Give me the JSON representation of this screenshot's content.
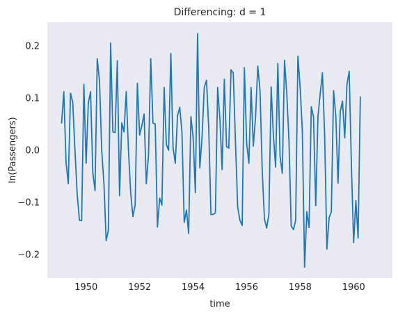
{
  "chart_data": {
    "type": "line",
    "title": "Differencing: d = 1",
    "xlabel": "time",
    "ylabel": "ln(Passengers)",
    "xlim": [
      1948.55,
      1961.45
    ],
    "ylim": [
      -0.245,
      0.245
    ],
    "xticks": [
      1950,
      1952,
      1954,
      1956,
      1958,
      1960
    ],
    "xtick_labels": [
      "1950",
      "1952",
      "1954",
      "1956",
      "1958",
      "1960"
    ],
    "yticks": [
      -0.2,
      -0.1,
      0.0,
      0.1,
      0.2
    ],
    "ytick_labels": [
      "−0.2",
      "−0.1",
      "0.0",
      "0.1",
      "0.2"
    ],
    "grid": false,
    "background_color": "#eaeaf2",
    "series": [
      {
        "color": "#1f77b4",
        "x_start": 1949.0833,
        "x_step": 0.083333,
        "values": [
          0.052,
          0.112,
          -0.023,
          -0.064,
          0.109,
          0.092,
          0.0,
          -0.084,
          -0.134,
          -0.135,
          0.126,
          -0.025,
          0.091,
          0.112,
          -0.043,
          -0.077,
          0.175,
          0.133,
          0.0,
          -0.064,
          -0.173,
          -0.153,
          0.205,
          0.035,
          0.034,
          0.171,
          -0.087,
          0.052,
          0.035,
          0.112,
          0.0,
          -0.082,
          -0.127,
          -0.105,
          0.128,
          0.029,
          0.047,
          0.069,
          -0.064,
          -0.008,
          0.175,
          0.052,
          0.05,
          -0.147,
          -0.092,
          -0.105,
          0.12,
          0.011,
          0.0,
          0.185,
          0.005,
          -0.025,
          0.066,
          0.082,
          0.034,
          -0.138,
          -0.115,
          -0.159,
          0.064,
          0.026,
          -0.081,
          0.223,
          -0.034,
          0.024,
          0.12,
          0.134,
          0.042,
          -0.123,
          -0.123,
          -0.12,
          0.12,
          0.06,
          -0.037,
          0.136,
          0.007,
          0.004,
          0.154,
          0.148,
          0.015,
          -0.11,
          -0.134,
          -0.144,
          0.158,
          0.014,
          -0.025,
          0.12,
          0.008,
          0.063,
          0.161,
          0.115,
          -0.04,
          -0.132,
          -0.149,
          -0.122,
          0.121,
          0.028,
          -0.032,
          0.166,
          -0.012,
          -0.044,
          0.172,
          0.11,
          0.018,
          -0.145,
          -0.152,
          -0.134,
          0.18,
          0.121,
          0.036,
          -0.224,
          -0.118,
          -0.148,
          0.083,
          0.064,
          -0.106,
          0.065,
          0.108,
          0.148,
          0.028,
          -0.189,
          -0.129,
          -0.118,
          0.114,
          0.066,
          -0.063,
          0.074,
          0.094,
          0.024,
          0.126,
          0.151,
          -0.029,
          -0.177,
          -0.097,
          -0.168,
          0.102
        ]
      }
    ]
  }
}
